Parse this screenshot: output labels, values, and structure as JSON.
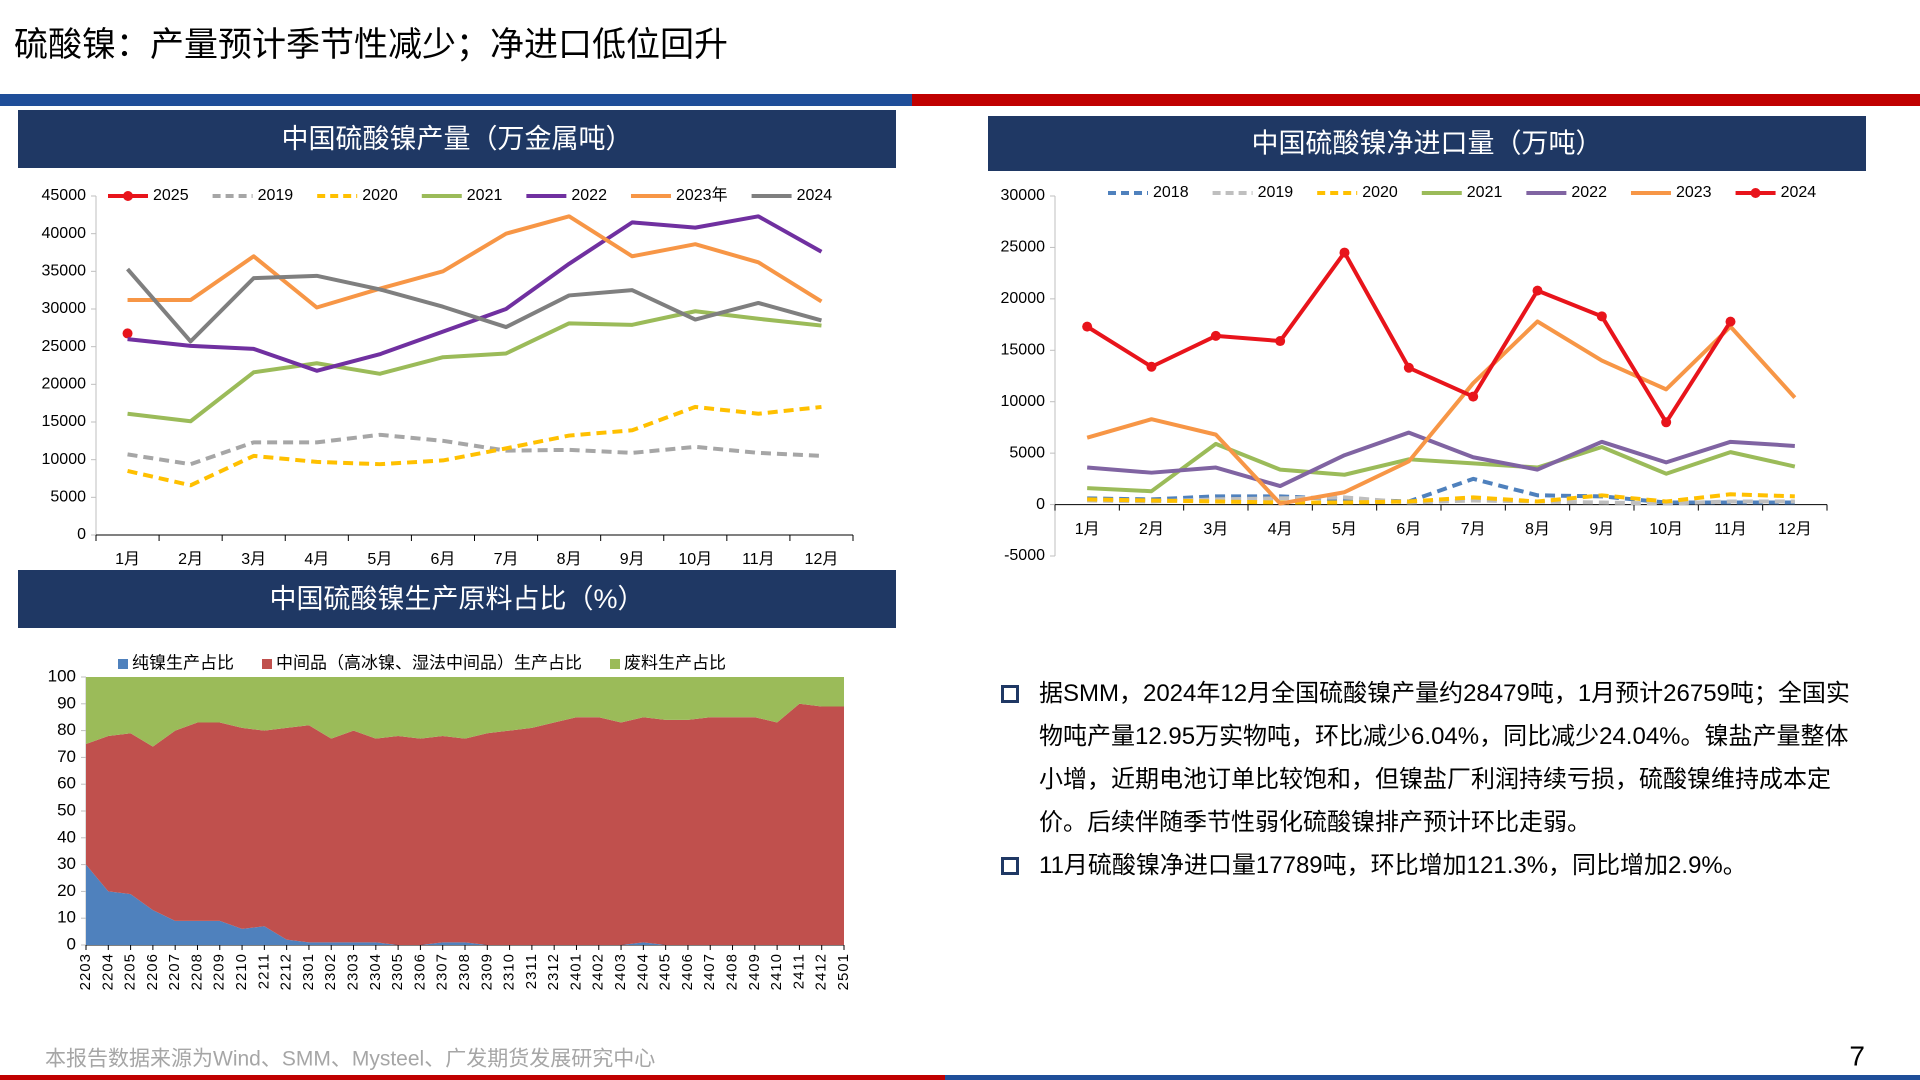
{
  "header": {
    "title": "硫酸镍：产量预计季节性减少；净进口低位回升"
  },
  "chart_data": [
    {
      "type": "line",
      "title": "中国硫酸镍产量（万金属吨）",
      "categories": [
        "1月",
        "2月",
        "3月",
        "4月",
        "5月",
        "6月",
        "7月",
        "8月",
        "9月",
        "10月",
        "11月",
        "12月"
      ],
      "ylim": [
        0,
        45000
      ],
      "yticks": [
        0,
        5000,
        10000,
        15000,
        20000,
        25000,
        30000,
        35000,
        40000,
        45000
      ],
      "legend": "top",
      "grid": false,
      "series": [
        {
          "name": "2025",
          "color": "#e8141b",
          "marker": true,
          "values": [
            26759,
            null,
            null,
            null,
            null,
            null,
            null,
            null,
            null,
            null,
            null,
            null
          ]
        },
        {
          "name": "2019",
          "color": "#a6a6a6",
          "dash": true,
          "values": [
            10700,
            9400,
            12300,
            12300,
            13300,
            12500,
            11200,
            11300,
            10900,
            11700,
            10900,
            10500
          ]
        },
        {
          "name": "2020",
          "color": "#ffc000",
          "dash": true,
          "values": [
            8500,
            6600,
            10500,
            9700,
            9400,
            9900,
            11500,
            13200,
            13900,
            17000,
            16100,
            17000
          ]
        },
        {
          "name": "2021",
          "color": "#9bbb59",
          "values": [
            16100,
            15100,
            21600,
            22800,
            21400,
            23600,
            24100,
            28100,
            27900,
            29700,
            28700,
            27800
          ]
        },
        {
          "name": "2022",
          "color": "#7030a0",
          "values": [
            26000,
            25100,
            24700,
            21800,
            24000,
            27000,
            30000,
            36000,
            41500,
            40800,
            42300,
            37600
          ]
        },
        {
          "name": "2023年",
          "color": "#f79646",
          "values": [
            31200,
            31200,
            37000,
            30200,
            32700,
            35000,
            40000,
            42300,
            37000,
            38600,
            36200,
            31000
          ]
        },
        {
          "name": "2024",
          "color": "#7f7f7f",
          "values": [
            35300,
            25700,
            34100,
            34400,
            32600,
            30300,
            27600,
            31800,
            32500,
            28600,
            30800,
            28479
          ]
        }
      ]
    },
    {
      "type": "line",
      "title": "中国硫酸镍净进口量（万吨）",
      "categories": [
        "1月",
        "2月",
        "3月",
        "4月",
        "5月",
        "6月",
        "7月",
        "8月",
        "9月",
        "10月",
        "11月",
        "12月"
      ],
      "ylim": [
        -5000,
        30000
      ],
      "yticks": [
        -5000,
        0,
        5000,
        10000,
        15000,
        20000,
        25000,
        30000
      ],
      "legend": "top",
      "grid": false,
      "series": [
        {
          "name": "2018",
          "color": "#4f81bd",
          "dash": true,
          "values": [
            600,
            500,
            800,
            800,
            500,
            300,
            2500,
            900,
            800,
            200,
            200,
            200
          ]
        },
        {
          "name": "2019",
          "color": "#bfbfbf",
          "dash": true,
          "values": [
            400,
            300,
            500,
            600,
            700,
            200,
            400,
            300,
            200,
            100,
            300,
            300
          ]
        },
        {
          "name": "2020",
          "color": "#ffc000",
          "dash": true,
          "values": [
            500,
            400,
            300,
            200,
            200,
            300,
            700,
            300,
            900,
            300,
            1000,
            800
          ]
        },
        {
          "name": "2021",
          "color": "#9bbb59",
          "values": [
            1600,
            1300,
            5900,
            3400,
            2900,
            4400,
            4000,
            3600,
            5600,
            3000,
            5100,
            3700
          ]
        },
        {
          "name": "2022",
          "color": "#8064a2",
          "values": [
            3600,
            3100,
            3600,
            1800,
            4800,
            7000,
            4600,
            3400,
            6100,
            4100,
            6100,
            5700
          ]
        },
        {
          "name": "2023",
          "color": "#f79646",
          "values": [
            6500,
            8300,
            6800,
            100,
            1200,
            4200,
            11800,
            17800,
            14000,
            11200,
            17300,
            10400
          ]
        },
        {
          "name": "2024",
          "color": "#e8141b",
          "marker": true,
          "values": [
            17300,
            13400,
            16400,
            15900,
            24500,
            13300,
            10500,
            20800,
            18300,
            8000,
            17789,
            null
          ]
        }
      ]
    },
    {
      "type": "area",
      "stacked": true,
      "title": "中国硫酸镍生产原料占比（%）",
      "categories": [
        "2203",
        "2204",
        "2205",
        "2206",
        "2207",
        "2208",
        "2209",
        "2210",
        "2211",
        "2212",
        "2301",
        "2302",
        "2303",
        "2304",
        "2305",
        "2306",
        "2307",
        "2308",
        "2309",
        "2310",
        "2311",
        "2312",
        "2401",
        "2402",
        "2403",
        "2404",
        "2405",
        "2406",
        "2407",
        "2408",
        "2409",
        "2410",
        "2411",
        "2412",
        "2501"
      ],
      "ylim": [
        0,
        100
      ],
      "yticks": [
        0,
        10,
        20,
        30,
        40,
        50,
        60,
        70,
        80,
        90,
        100
      ],
      "legend": "top",
      "grid": false,
      "series": [
        {
          "name": "纯镍生产占比",
          "color": "#4f81bd",
          "values": [
            30,
            20,
            19,
            13,
            9,
            9,
            9,
            6,
            7,
            2,
            1,
            1,
            1,
            1,
            0,
            0,
            1,
            1,
            0,
            0,
            0,
            0,
            0,
            0,
            0,
            1,
            0,
            0,
            0,
            0,
            0,
            0,
            0,
            0,
            0
          ]
        },
        {
          "name": "中间品（高冰镍、湿法中间品）生产占比",
          "color": "#c0504d",
          "values": [
            45,
            58,
            60,
            61,
            71,
            74,
            74,
            75,
            73,
            79,
            81,
            76,
            79,
            76,
            78,
            77,
            77,
            76,
            79,
            80,
            81,
            83,
            85,
            85,
            83,
            84,
            84,
            84,
            85,
            85,
            85,
            83,
            90,
            89,
            89
          ]
        },
        {
          "name": "废料生产占比",
          "color": "#9bbb59",
          "values": [
            25,
            22,
            21,
            26,
            20,
            17,
            17,
            19,
            20,
            19,
            18,
            23,
            20,
            23,
            22,
            23,
            22,
            23,
            21,
            20,
            19,
            17,
            15,
            15,
            17,
            15,
            16,
            16,
            15,
            15,
            15,
            17,
            10,
            11,
            11
          ]
        }
      ]
    }
  ],
  "bullets": [
    "据SMM，2024年12月全国硫酸镍产量约28479吨，1月预计26759吨；全国实物吨产量12.95万实物吨，环比减少6.04%，同比减少24.04%。镍盐产量整体小增，近期电池订单比较饱和，但镍盐厂利润持续亏损，硫酸镍维持成本定价。后续伴随季节性弱化硫酸镍排产预计环比走弱。",
    "11月硫酸镍净进口量17789吨，环比增加121.3%，同比增加2.9%。"
  ],
  "footer": {
    "source": "本报告数据来源为Wind、SMM、Mysteel、广发期货发展研究中心",
    "page_number": "7"
  }
}
